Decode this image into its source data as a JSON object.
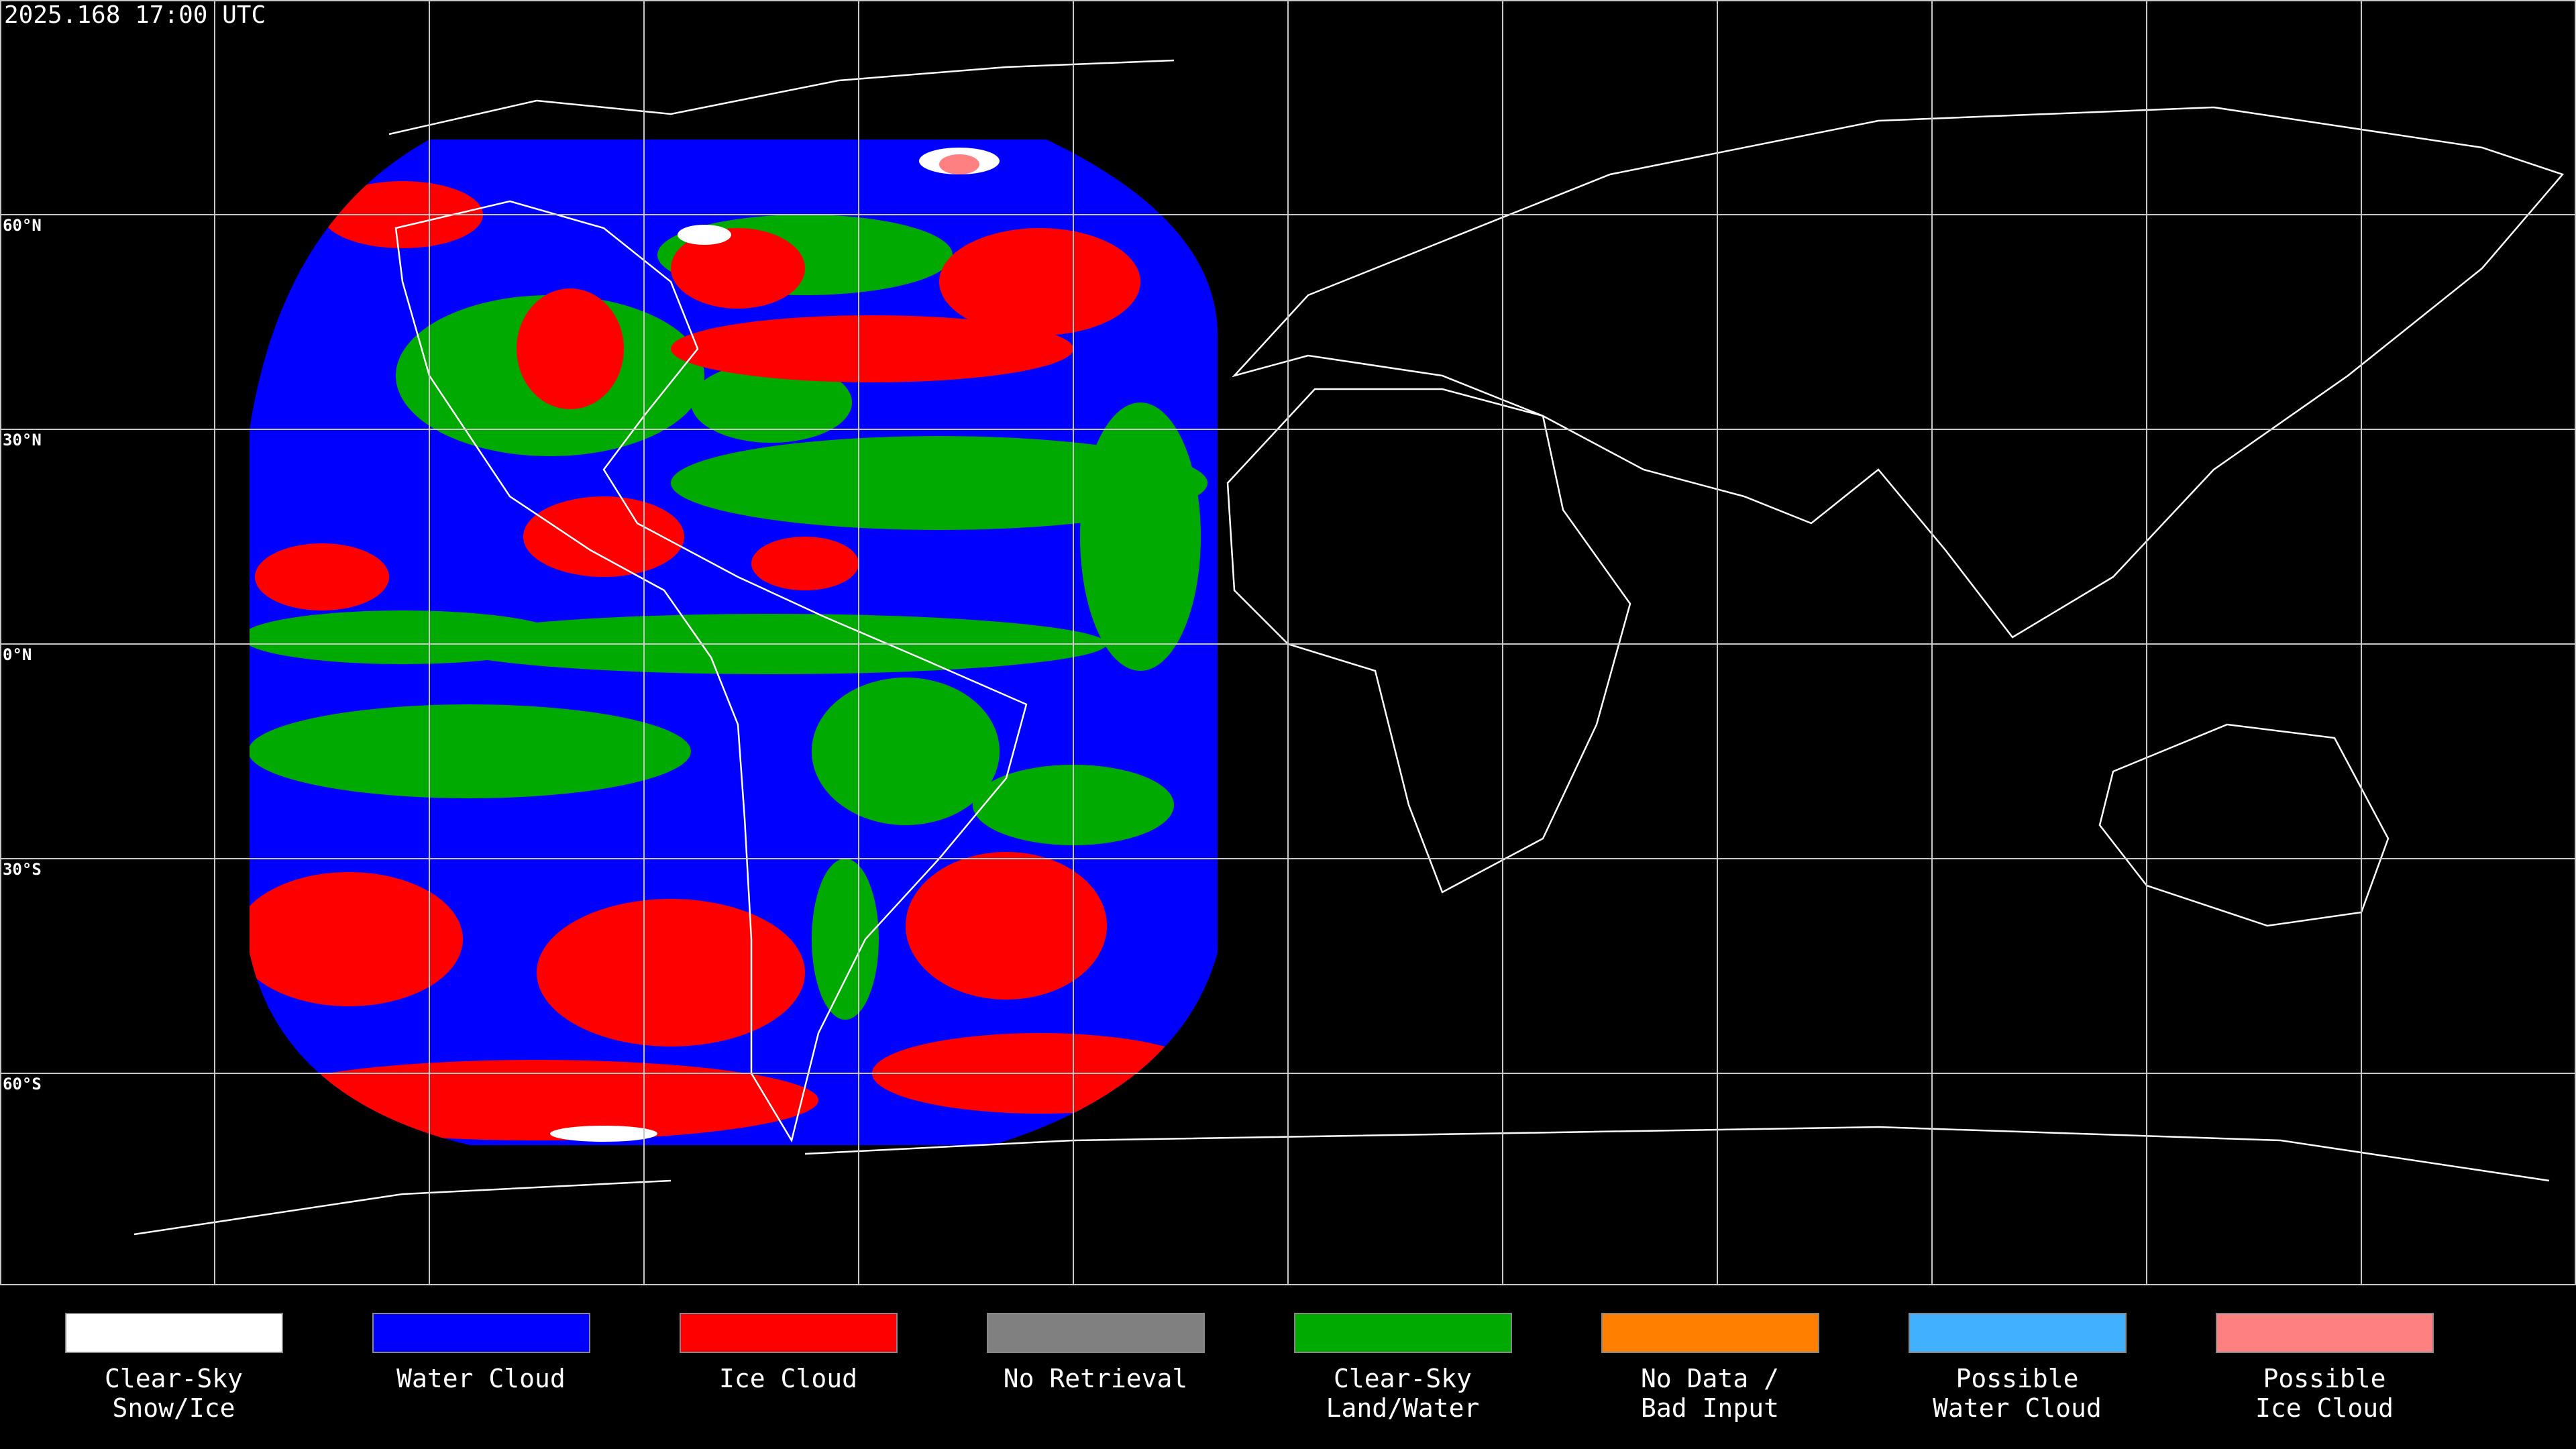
{
  "header": {
    "title": "2025.168 17:00 UTC"
  },
  "map": {
    "latitude_labels": [
      "60°N",
      "30°N",
      "0°N",
      "30°S",
      "60°S"
    ]
  },
  "legend": {
    "items": [
      {
        "lines": [
          "Clear-Sky",
          "Snow/Ice"
        ],
        "color": "#ffffff"
      },
      {
        "lines": [
          "Water Cloud"
        ],
        "color": "#0000ff"
      },
      {
        "lines": [
          "Ice Cloud"
        ],
        "color": "#ff0000"
      },
      {
        "lines": [
          "No Retrieval"
        ],
        "color": "#808080"
      },
      {
        "lines": [
          "Clear-Sky",
          "Land/Water"
        ],
        "color": "#00aa00"
      },
      {
        "lines": [
          "No Data /",
          "Bad Input"
        ],
        "color": "#ff8000"
      },
      {
        "lines": [
          "Possible",
          "Water Cloud"
        ],
        "color": "#40b0ff"
      },
      {
        "lines": [
          "Possible",
          "Ice Cloud"
        ],
        "color": "#ff8080"
      }
    ]
  }
}
